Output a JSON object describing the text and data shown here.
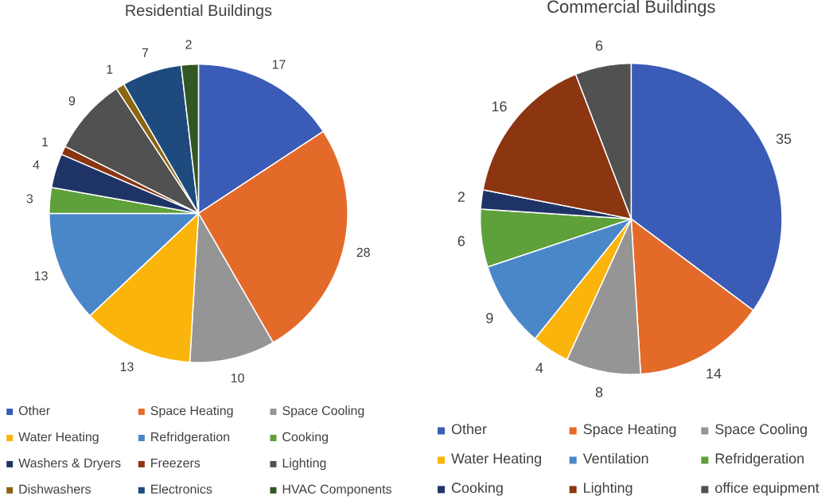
{
  "chart_data": [
    {
      "type": "pie",
      "title": "Residential Buildings",
      "categories": [
        "Other",
        "Space Heating",
        "Space Cooling",
        "Water Heating",
        "Refridgeration",
        "Cooking",
        "Washers & Dryers",
        "Freezers",
        "Lighting",
        "Dishwashers",
        "Electronics",
        "HVAC Components"
      ],
      "values": [
        17,
        28,
        10,
        13,
        13,
        3,
        4,
        1,
        9,
        1,
        7,
        2
      ],
      "colors": [
        "#3a5bb6",
        "#e46a2a",
        "#959595",
        "#fbb40b",
        "#4a87c8",
        "#5ea03a",
        "#1f3466",
        "#8b3511",
        "#515151",
        "#8b6511",
        "#1f4a7e",
        "#325624"
      ],
      "data_labels": true,
      "legend": "bottom"
    },
    {
      "type": "pie",
      "title": "Commercial Buildings",
      "categories": [
        "Other",
        "Space Heating",
        "Space Cooling",
        "Water Heating",
        "Ventilation",
        "Refridgeration",
        "Cooking",
        "Lighting",
        "office equipment"
      ],
      "values": [
        35,
        14,
        8,
        4,
        9,
        6,
        2,
        16,
        6
      ],
      "colors": [
        "#3a5bb6",
        "#e46a2a",
        "#959595",
        "#fbb40b",
        "#4a87c8",
        "#5ea03a",
        "#1f3466",
        "#8b3511",
        "#515151"
      ],
      "data_labels": true,
      "legend": "bottom"
    }
  ]
}
